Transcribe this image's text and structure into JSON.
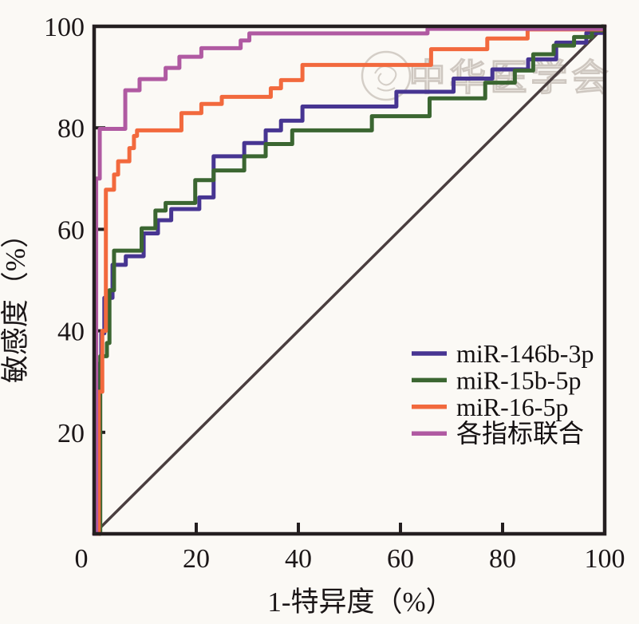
{
  "watermark": {
    "seal_icon": "chinese-medical-association-seal-icon",
    "text": "中华医学会"
  },
  "axes": {
    "x_ticks": [
      0,
      20,
      40,
      60,
      80,
      100
    ],
    "y_ticks": [
      20,
      40,
      60,
      80,
      100
    ],
    "x_origin_label": "0"
  },
  "chart_data": {
    "type": "line",
    "subtype": "roc_step_curves",
    "title": "",
    "xlabel": "1-特异度（%）",
    "ylabel": "敏感度（%）",
    "xlim": [
      0,
      100
    ],
    "ylim": [
      0,
      100
    ],
    "grid": false,
    "legend_position": "inside lower-right",
    "reference_line": {
      "name": "chance-diagonal",
      "color": "#4a3e3f",
      "width": 3.5,
      "points": [
        [
          0,
          0
        ],
        [
          100,
          100
        ]
      ]
    },
    "series": [
      {
        "name": "miR-146b-3p",
        "color": "#473592",
        "width": 5,
        "points": [
          [
            0,
            0
          ],
          [
            0.6,
            0
          ],
          [
            0.6,
            33.5
          ],
          [
            1.4,
            33.5
          ],
          [
            1.4,
            39.5
          ],
          [
            2,
            39.5
          ],
          [
            2,
            46.5
          ],
          [
            3.6,
            46.5
          ],
          [
            3.6,
            53
          ],
          [
            6.2,
            53
          ],
          [
            6.2,
            54.7
          ],
          [
            9.7,
            54.7
          ],
          [
            9.7,
            59.2
          ],
          [
            12.5,
            59.2
          ],
          [
            12.5,
            61.8
          ],
          [
            15.1,
            61.8
          ],
          [
            15.1,
            64
          ],
          [
            20.6,
            64
          ],
          [
            20.6,
            66.3
          ],
          [
            23.4,
            66.3
          ],
          [
            23.4,
            74.4
          ],
          [
            29.4,
            74.4
          ],
          [
            29.4,
            77
          ],
          [
            33.6,
            77
          ],
          [
            33.6,
            79.5
          ],
          [
            36.6,
            79.5
          ],
          [
            36.6,
            81.4
          ],
          [
            40.8,
            81.4
          ],
          [
            40.8,
            84.2
          ],
          [
            59.2,
            84.2
          ],
          [
            59.2,
            87.1
          ],
          [
            70.4,
            87.1
          ],
          [
            70.4,
            89.7
          ],
          [
            78,
            89.7
          ],
          [
            78,
            91.5
          ],
          [
            85,
            91.5
          ],
          [
            85,
            93.5
          ],
          [
            90.5,
            93.5
          ],
          [
            90.5,
            96.8
          ],
          [
            96.4,
            96.8
          ],
          [
            96.4,
            98.7
          ],
          [
            99.6,
            98.7
          ],
          [
            99.6,
            100
          ],
          [
            100,
            100
          ]
        ]
      },
      {
        "name": "miR-15b-5p",
        "color": "#3b6631",
        "width": 5,
        "points": [
          [
            0,
            0
          ],
          [
            1.2,
            0
          ],
          [
            1.2,
            35
          ],
          [
            2.5,
            35
          ],
          [
            2.5,
            37.6
          ],
          [
            3,
            37.6
          ],
          [
            3,
            48
          ],
          [
            3.9,
            48
          ],
          [
            3.9,
            55.8
          ],
          [
            9.3,
            55.8
          ],
          [
            9.3,
            60.2
          ],
          [
            12,
            60.2
          ],
          [
            12,
            63.7
          ],
          [
            14,
            63.7
          ],
          [
            14,
            65.2
          ],
          [
            19.8,
            65.2
          ],
          [
            19.8,
            69.7
          ],
          [
            23.4,
            69.7
          ],
          [
            23.4,
            71.6
          ],
          [
            29.4,
            71.6
          ],
          [
            29.4,
            74.4
          ],
          [
            33.6,
            74.4
          ],
          [
            33.6,
            76.8
          ],
          [
            38.8,
            76.8
          ],
          [
            38.8,
            79.5
          ],
          [
            54.4,
            79.5
          ],
          [
            54.4,
            82.3
          ],
          [
            65.7,
            82.3
          ],
          [
            65.7,
            85.8
          ],
          [
            76.6,
            85.8
          ],
          [
            76.6,
            88.9
          ],
          [
            82.4,
            88.9
          ],
          [
            82.4,
            91.3
          ],
          [
            86,
            91.3
          ],
          [
            86,
            94.5
          ],
          [
            90,
            94.5
          ],
          [
            90,
            96.2
          ],
          [
            94,
            96.2
          ],
          [
            94,
            97.9
          ],
          [
            97.5,
            97.9
          ],
          [
            97.5,
            99.2
          ],
          [
            99.5,
            99.2
          ],
          [
            99.5,
            100
          ],
          [
            100,
            100
          ]
        ]
      },
      {
        "name": "miR-16-5p",
        "color": "#f2693d",
        "width": 5,
        "points": [
          [
            0,
            0
          ],
          [
            0.9,
            0
          ],
          [
            0.9,
            28
          ],
          [
            1.6,
            28
          ],
          [
            1.6,
            40
          ],
          [
            2.3,
            40
          ],
          [
            2.3,
            67.8
          ],
          [
            3.9,
            67.8
          ],
          [
            3.9,
            70.8
          ],
          [
            4.7,
            70.8
          ],
          [
            4.7,
            73.4
          ],
          [
            6.9,
            73.4
          ],
          [
            6.9,
            76
          ],
          [
            7.8,
            76
          ],
          [
            7.8,
            78.4
          ],
          [
            8.4,
            78.4
          ],
          [
            8.4,
            79.5
          ],
          [
            17.1,
            79.5
          ],
          [
            17.1,
            82.9
          ],
          [
            21,
            82.9
          ],
          [
            21,
            84.7
          ],
          [
            25,
            84.7
          ],
          [
            25,
            86.1
          ],
          [
            34.6,
            86.1
          ],
          [
            34.6,
            87.8
          ],
          [
            36.6,
            87.8
          ],
          [
            36.6,
            89.4
          ],
          [
            40.8,
            89.4
          ],
          [
            40.8,
            92.4
          ],
          [
            66,
            92.4
          ],
          [
            66,
            95.5
          ],
          [
            77,
            95.5
          ],
          [
            77,
            97.6
          ],
          [
            84.9,
            97.6
          ],
          [
            84.9,
            99.4
          ],
          [
            99.7,
            99.4
          ],
          [
            100,
            100
          ]
        ]
      },
      {
        "name": "各指标联合",
        "color": "#b05aa2",
        "width": 5,
        "points": [
          [
            0,
            0
          ],
          [
            0.4,
            0
          ],
          [
            0.4,
            70
          ],
          [
            1.1,
            70
          ],
          [
            1.1,
            79.8
          ],
          [
            6.1,
            79.8
          ],
          [
            6.1,
            87.4
          ],
          [
            8.9,
            87.4
          ],
          [
            8.9,
            89.6
          ],
          [
            14,
            89.6
          ],
          [
            14,
            91.8
          ],
          [
            16.7,
            91.8
          ],
          [
            16.7,
            94
          ],
          [
            21,
            94
          ],
          [
            21,
            95.7
          ],
          [
            28.7,
            95.7
          ],
          [
            28.7,
            97.2
          ],
          [
            30.4,
            97.2
          ],
          [
            30.4,
            98.6
          ],
          [
            65.3,
            98.6
          ],
          [
            65.3,
            99.5
          ],
          [
            99.6,
            99.5
          ],
          [
            100,
            100
          ]
        ]
      }
    ]
  },
  "colors": {
    "background": "#fbf9f5",
    "axis_frame": "#241f20",
    "tick_text": "#1b1617"
  }
}
